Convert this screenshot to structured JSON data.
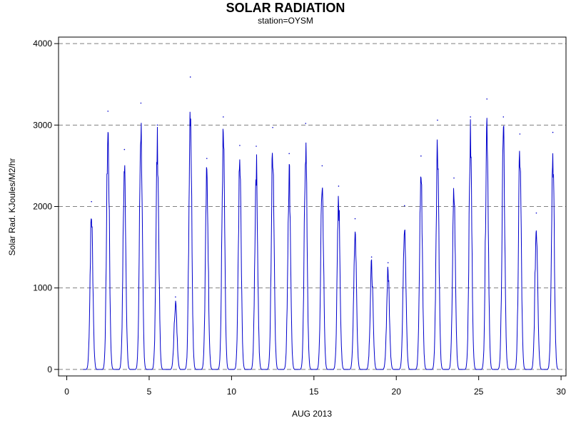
{
  "chart_data": {
    "type": "line",
    "title": "SOLAR RADIATION",
    "subtitle": "station=OYSM",
    "xlabel": "AUG 2013",
    "ylabel": "Solar Rad. KJoules/M2/hr",
    "xlim": [
      -0.5,
      30.3
    ],
    "ylim": [
      -80,
      4080
    ],
    "x_ticks": [
      0,
      5,
      10,
      15,
      20,
      25,
      30
    ],
    "x_tick_labels": [
      "0",
      "5",
      "10",
      "15",
      "20",
      "25",
      "30"
    ],
    "y_ticks": [
      0,
      1000,
      2000,
      3000,
      4000
    ],
    "y_tick_labels": [
      "0",
      "1000",
      "2000",
      "3000",
      "4000"
    ],
    "grid": "horizontal dashed at y ticks",
    "line_color": "#0000cc",
    "daily_peaks": [
      {
        "day": 1.5,
        "peak": 2060
      },
      {
        "day": 2.5,
        "peak": 3170
      },
      {
        "day": 3.5,
        "peak": 2700
      },
      {
        "day": 4.5,
        "peak": 3270
      },
      {
        "day": 5.5,
        "peak": 3000
      },
      {
        "day": 6.6,
        "peak": 890
      },
      {
        "day": 7.5,
        "peak": 3590
      },
      {
        "day": 8.5,
        "peak": 2590
      },
      {
        "day": 9.5,
        "peak": 3100
      },
      {
        "day": 10.5,
        "peak": 2750
      },
      {
        "day": 11.5,
        "peak": 2740
      },
      {
        "day": 12.5,
        "peak": 2970
      },
      {
        "day": 13.5,
        "peak": 2650
      },
      {
        "day": 14.5,
        "peak": 3020
      },
      {
        "day": 15.5,
        "peak": 2500
      },
      {
        "day": 16.5,
        "peak": 2250
      },
      {
        "day": 17.5,
        "peak": 1850
      },
      {
        "day": 18.5,
        "peak": 1380
      },
      {
        "day": 19.5,
        "peak": 1310
      },
      {
        "day": 20.5,
        "peak": 2010
      },
      {
        "day": 21.5,
        "peak": 2620
      },
      {
        "day": 22.5,
        "peak": 3060
      },
      {
        "day": 23.5,
        "peak": 2350
      },
      {
        "day": 24.5,
        "peak": 3100
      },
      {
        "day": 25.5,
        "peak": 3320
      },
      {
        "day": 26.5,
        "peak": 3100
      },
      {
        "day": 27.5,
        "peak": 2890
      },
      {
        "day": 28.5,
        "peak": 1920
      },
      {
        "day": 29.5,
        "peak": 2910
      }
    ]
  }
}
